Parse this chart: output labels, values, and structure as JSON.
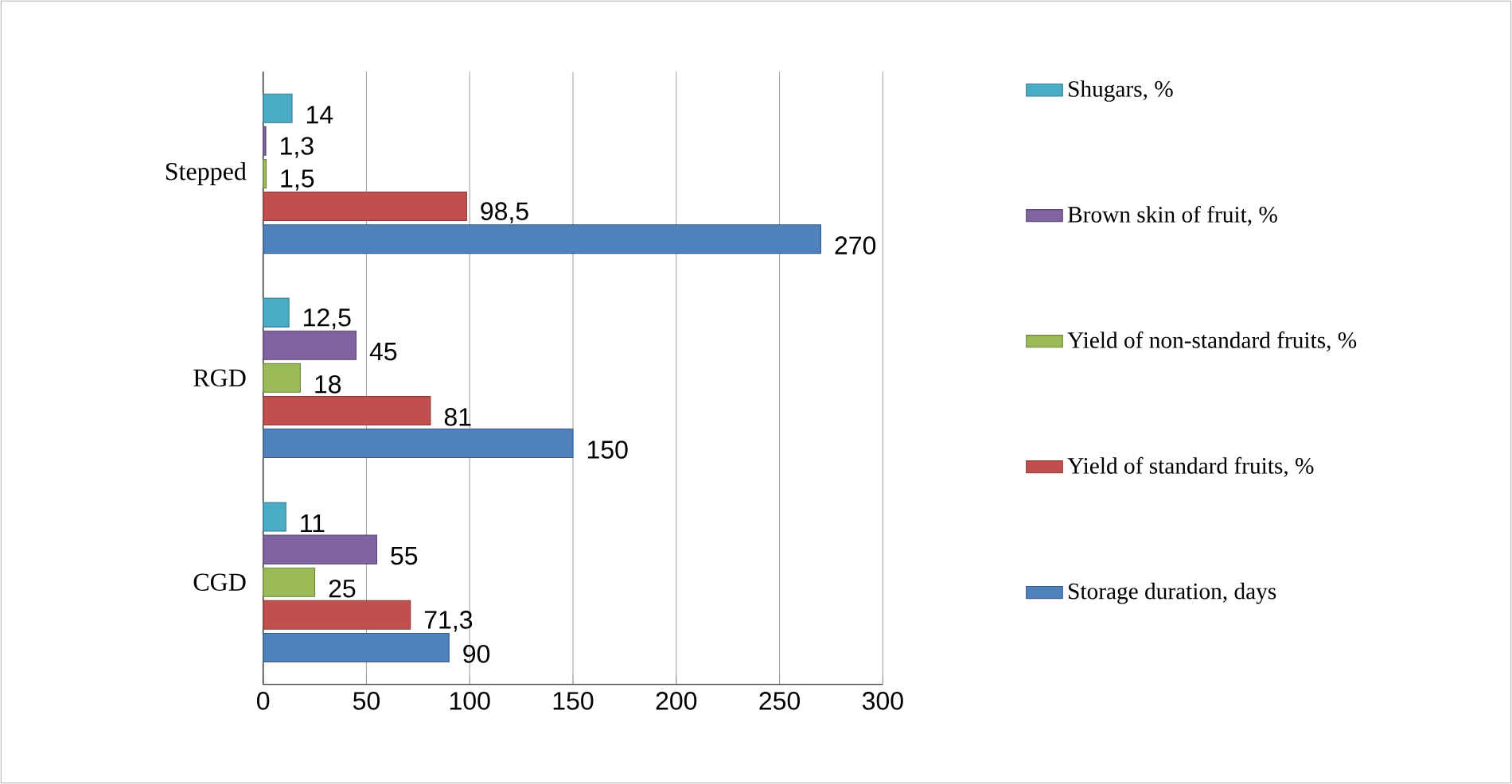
{
  "chart_data": {
    "type": "bar",
    "orientation": "horizontal",
    "categories": [
      "Stepped",
      "RGD",
      "CGD"
    ],
    "series": [
      {
        "name": "Shugars, %",
        "color": "#4bacc6",
        "values": [
          14,
          12.5,
          11
        ],
        "value_labels": [
          "14",
          "12,5",
          "11"
        ]
      },
      {
        "name": "Brown skin of fruit, %",
        "color": "#8064a2",
        "values": [
          1.3,
          45,
          55
        ],
        "value_labels": [
          "1,3",
          "45",
          "55"
        ]
      },
      {
        "name": "Yield of non-standard fruits, %",
        "color": "#9bbb59",
        "values": [
          1.5,
          18,
          25
        ],
        "value_labels": [
          "1,5",
          "18",
          "25"
        ]
      },
      {
        "name": "Yield of standard fruits, %",
        "color": "#c0504d",
        "values": [
          98.5,
          81,
          71.3
        ],
        "value_labels": [
          "98,5",
          "81",
          "71,3"
        ]
      },
      {
        "name": "Storage duration, days",
        "color": "#4f81bd",
        "values": [
          270,
          150,
          90
        ],
        "value_labels": [
          "270",
          "150",
          "90"
        ]
      }
    ],
    "xlim": [
      0,
      300
    ],
    "xticks": [
      0,
      50,
      100,
      150,
      200,
      250,
      300
    ],
    "grid": "x",
    "legend": "right"
  }
}
